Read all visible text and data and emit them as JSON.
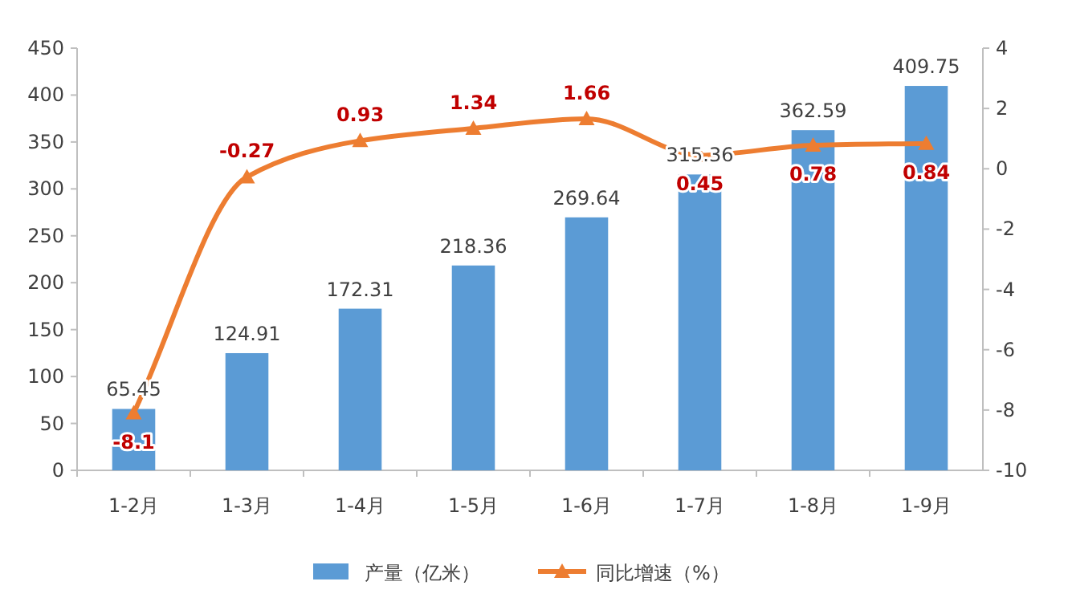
{
  "chart_data": {
    "type": "bar",
    "categories": [
      "1-2月",
      "1-3月",
      "1-4月",
      "1-5月",
      "1-6月",
      "1-7月",
      "1-8月",
      "1-9月"
    ],
    "series": [
      {
        "name": "产量（亿米）",
        "color": "#5b9bd5",
        "values": [
          65.45,
          124.91,
          172.31,
          218.36,
          269.64,
          315.36,
          362.59,
          409.75
        ]
      },
      {
        "name": "同比增速（%）",
        "type": "line",
        "axis": "y2",
        "color": "#ed7d31",
        "values": [
          -8.1,
          -0.27,
          0.93,
          1.34,
          1.66,
          0.45,
          0.78,
          0.84
        ]
      }
    ],
    "ylim": [
      0,
      450
    ],
    "yticks": [
      0,
      50,
      100,
      150,
      200,
      250,
      300,
      350,
      400,
      450
    ],
    "y2lim": [
      -10,
      4
    ],
    "y2ticks": [
      -10,
      -8,
      -6,
      -4,
      -2,
      0,
      2,
      4
    ],
    "data_labels": true,
    "legend": "bottom",
    "marker": "triangle",
    "line_style": "solid"
  }
}
